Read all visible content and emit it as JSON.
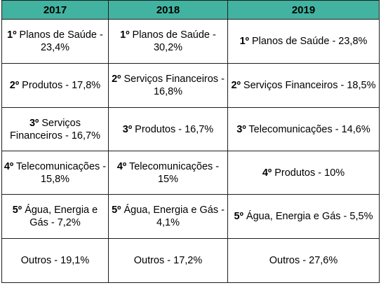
{
  "table": {
    "headers": [
      "2017",
      "2018",
      "2019"
    ],
    "rows": [
      [
        {
          "rank": "1º",
          "text": " Planos de Saúde - 23,4%"
        },
        {
          "rank": "1º",
          "text": " Planos de Saúde - 30,2%"
        },
        {
          "rank": "1º",
          "text": " Planos de Saúde - 23,8%"
        }
      ],
      [
        {
          "rank": "2º",
          "text": " Produtos - 17,8%"
        },
        {
          "rank": "2º",
          "text": " Serviços Financeiros - 16,8%"
        },
        {
          "rank": "2º",
          "text": " Serviços Financeiros - 18,5%"
        }
      ],
      [
        {
          "rank": "3º",
          "text": " Serviços Financeiros - 16,7%"
        },
        {
          "rank": "3º",
          "text": " Produtos - 16,7%"
        },
        {
          "rank": "3º",
          "text": " Telecomunicações - 14,6%"
        }
      ],
      [
        {
          "rank": "4º",
          "text": " Telecomunicações - 15,8%"
        },
        {
          "rank": "4º",
          "text": " Telecomunicações - 15%"
        },
        {
          "rank": "4º",
          "text": " Produtos - 10%"
        }
      ],
      [
        {
          "rank": "5º",
          "text": " Água, Energia e Gás - 7,2%"
        },
        {
          "rank": "5º",
          "text": " Água, Energia e Gás - 4,1%"
        },
        {
          "rank": "5º",
          "text": " Água, Energia e Gás - 5,5%"
        }
      ],
      [
        {
          "rank": "",
          "text": "Outros - 19,1%"
        },
        {
          "rank": "",
          "text": "Outros - 17,2%"
        },
        {
          "rank": "",
          "text": "Outros - 27,6%"
        }
      ]
    ]
  },
  "colors": {
    "header_background": "#42b3a0",
    "border": "#1e1e1e"
  }
}
